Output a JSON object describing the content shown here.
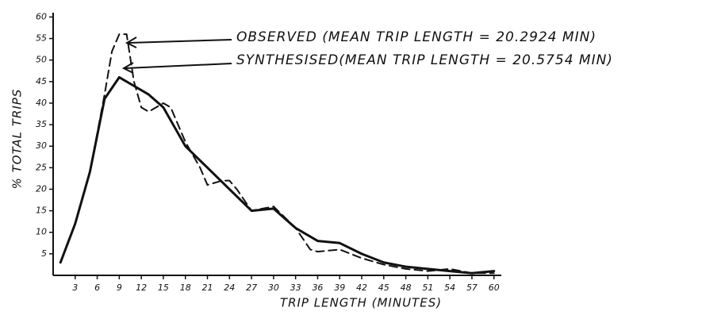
{
  "chart_data": {
    "type": "line",
    "xlabel": "TRIP LENGTH (MINUTES)",
    "ylabel": "% TOTAL TRIPS",
    "annotations": [
      "OBSERVED (MEAN TRIP LENGTH = 20.2924 MIN)",
      "SYNTHESISED(MEAN TRIP LENGTH = 20.5754 MIN)"
    ],
    "series": [
      {
        "name": "OBSERVED",
        "color": "#111",
        "dashed": true,
        "x": [
          1,
          3,
          5,
          7,
          8,
          9,
          10,
          11,
          12,
          13,
          15,
          16,
          18,
          20,
          21,
          23,
          24,
          25,
          27,
          30,
          33,
          35,
          36,
          39,
          42,
          45,
          48,
          51,
          54,
          57,
          60
        ],
        "values": [
          3,
          12,
          24,
          42,
          52,
          56,
          56,
          45,
          39,
          38,
          40,
          39,
          31,
          25,
          21,
          22,
          22,
          20,
          15,
          16,
          11,
          6,
          5.5,
          6,
          4,
          2.5,
          1.5,
          1,
          1.5,
          0.5,
          0.5
        ]
      },
      {
        "name": "SYNTHESISED",
        "color": "#111",
        "dashed": false,
        "x": [
          1,
          3,
          5,
          7,
          9,
          11,
          13,
          15,
          17,
          18,
          21,
          24,
          27,
          30,
          33,
          36,
          39,
          42,
          45,
          48,
          51,
          54,
          57,
          60
        ],
        "values": [
          3,
          12,
          24,
          41,
          46,
          44,
          42,
          39,
          33,
          30,
          25,
          20,
          15,
          15.5,
          11,
          8,
          7.5,
          5,
          3,
          2,
          1.5,
          1,
          0.5,
          1
        ]
      }
    ],
    "xlim": [
      0,
      61
    ],
    "ylim": [
      0,
      61
    ],
    "xticks": [
      3,
      6,
      9,
      12,
      15,
      18,
      21,
      24,
      27,
      30,
      33,
      36,
      39,
      42,
      45,
      48,
      51,
      54,
      57,
      60
    ],
    "yticks": [
      5,
      10,
      15,
      20,
      25,
      30,
      35,
      40,
      45,
      50,
      55,
      60
    ]
  }
}
